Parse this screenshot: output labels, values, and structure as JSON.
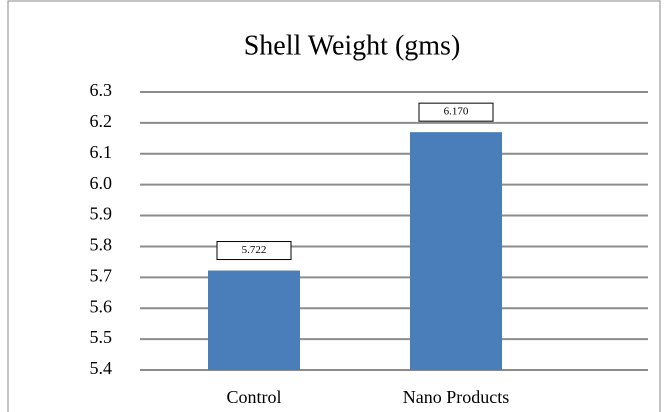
{
  "chart_data": {
    "type": "bar",
    "title": "Shell Weight (gms)",
    "categories": [
      "Control",
      "Nano Products"
    ],
    "values": [
      5.722,
      6.17
    ],
    "value_labels": [
      "5.722",
      "6.170"
    ],
    "color": "#4a7ebb",
    "ylim": [
      5.4,
      6.3
    ],
    "yticks": [
      5.4,
      5.5,
      5.6,
      5.7,
      5.8,
      5.9,
      {
        "value": 6,
        "label": "6.0"
      },
      6.1,
      6.2,
      6.3
    ],
    "grid": true
  }
}
